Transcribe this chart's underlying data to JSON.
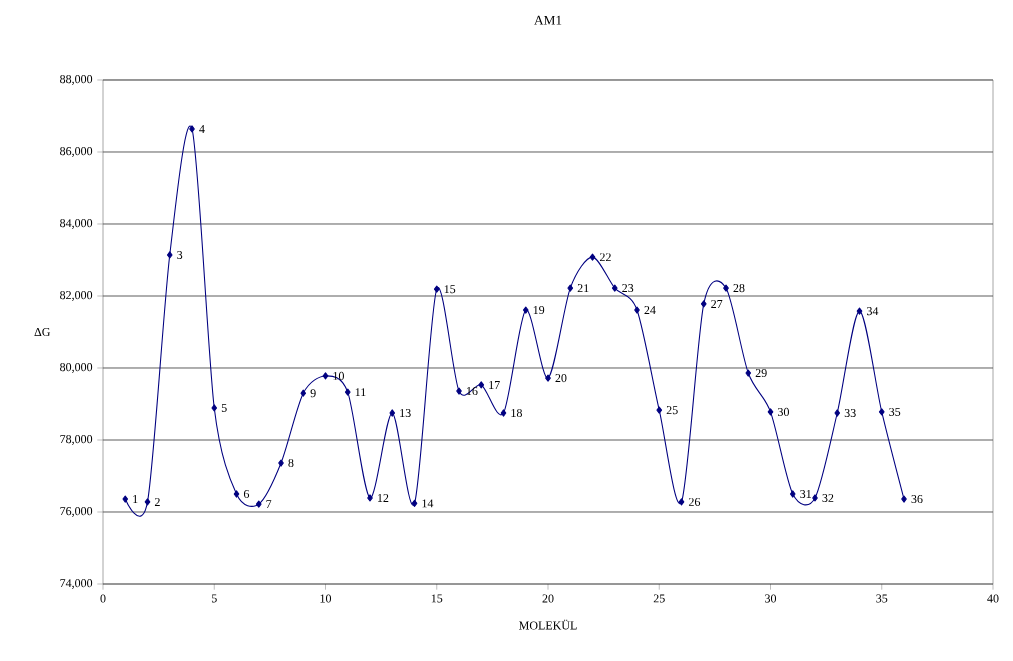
{
  "chart_data": {
    "type": "line",
    "title": "AM1",
    "xlabel": "MOLEKÜL",
    "ylabel": "ΔG",
    "x": [
      1,
      2,
      3,
      4,
      5,
      6,
      7,
      8,
      9,
      10,
      11,
      12,
      13,
      14,
      15,
      16,
      17,
      18,
      19,
      20,
      21,
      22,
      23,
      24,
      25,
      26,
      27,
      28,
      29,
      30,
      31,
      32,
      33,
      34,
      35,
      36
    ],
    "series": [
      {
        "color": "#000080",
        "values": [
          76360,
          76280,
          83140,
          86640,
          78890,
          76500,
          76220,
          77360,
          79300,
          79780,
          79330,
          76390,
          78750,
          76240,
          82190,
          79360,
          79530,
          78750,
          81610,
          79720,
          82220,
          83080,
          82220,
          81610,
          78830,
          76280,
          81780,
          82220,
          79860,
          78780,
          76500,
          76390,
          78750,
          81580,
          78780,
          76360
        ]
      }
    ],
    "xlim": [
      0,
      40
    ],
    "xticks": [
      0,
      5,
      10,
      15,
      20,
      25,
      30,
      35,
      40
    ],
    "ylim": [
      74000,
      88000
    ],
    "yticks": [
      {
        "value": 74000,
        "label": "74,000"
      },
      {
        "value": 76000,
        "label": "76,000"
      },
      {
        "value": 78000,
        "label": "78,000"
      },
      {
        "value": 80000,
        "label": "80,000"
      },
      {
        "value": 82000,
        "label": "82,000"
      },
      {
        "value": 84000,
        "label": "84,000"
      },
      {
        "value": 86000,
        "label": "86,000"
      },
      {
        "value": 88000,
        "label": "88,000"
      }
    ],
    "grid": "y",
    "marker": "diamond",
    "line_style": "solid",
    "annotations": [
      {
        "text": "1",
        "x": 1,
        "y": 76360
      },
      {
        "text": "2",
        "x": 2,
        "y": 76280
      },
      {
        "text": "3",
        "x": 3,
        "y": 83140
      },
      {
        "text": "4",
        "x": 4,
        "y": 86640
      },
      {
        "text": "5",
        "x": 5,
        "y": 78890
      },
      {
        "text": "6",
        "x": 6,
        "y": 76500
      },
      {
        "text": "7",
        "x": 7,
        "y": 76220
      },
      {
        "text": "8",
        "x": 8,
        "y": 77360
      },
      {
        "text": "9",
        "x": 9,
        "y": 79300
      },
      {
        "text": "10",
        "x": 10,
        "y": 79780
      },
      {
        "text": "11",
        "x": 11,
        "y": 79330
      },
      {
        "text": "12",
        "x": 12,
        "y": 76390
      },
      {
        "text": "13",
        "x": 13,
        "y": 78750
      },
      {
        "text": "14",
        "x": 14,
        "y": 76240
      },
      {
        "text": "15",
        "x": 15,
        "y": 82190
      },
      {
        "text": "16",
        "x": 16,
        "y": 79360
      },
      {
        "text": "17",
        "x": 17,
        "y": 79530
      },
      {
        "text": "18",
        "x": 18,
        "y": 78750
      },
      {
        "text": "19",
        "x": 19,
        "y": 81610
      },
      {
        "text": "20",
        "x": 20,
        "y": 79720
      },
      {
        "text": "21",
        "x": 21,
        "y": 82220
      },
      {
        "text": "22",
        "x": 22,
        "y": 83080
      },
      {
        "text": "23",
        "x": 23,
        "y": 82220
      },
      {
        "text": "24",
        "x": 24,
        "y": 81610
      },
      {
        "text": "25",
        "x": 25,
        "y": 78830
      },
      {
        "text": "26",
        "x": 26,
        "y": 76280
      },
      {
        "text": "27",
        "x": 27,
        "y": 81780
      },
      {
        "text": "28",
        "x": 28,
        "y": 82220
      },
      {
        "text": "29",
        "x": 29,
        "y": 79860
      },
      {
        "text": "30",
        "x": 30,
        "y": 78780
      },
      {
        "text": "31",
        "x": 31,
        "y": 76500
      },
      {
        "text": "32",
        "x": 32,
        "y": 76390
      },
      {
        "text": "33",
        "x": 33,
        "y": 78750
      },
      {
        "text": "34",
        "x": 34,
        "y": 81580
      },
      {
        "text": "35",
        "x": 35,
        "y": 78780
      },
      {
        "text": "36",
        "x": 36,
        "y": 76360
      }
    ]
  }
}
